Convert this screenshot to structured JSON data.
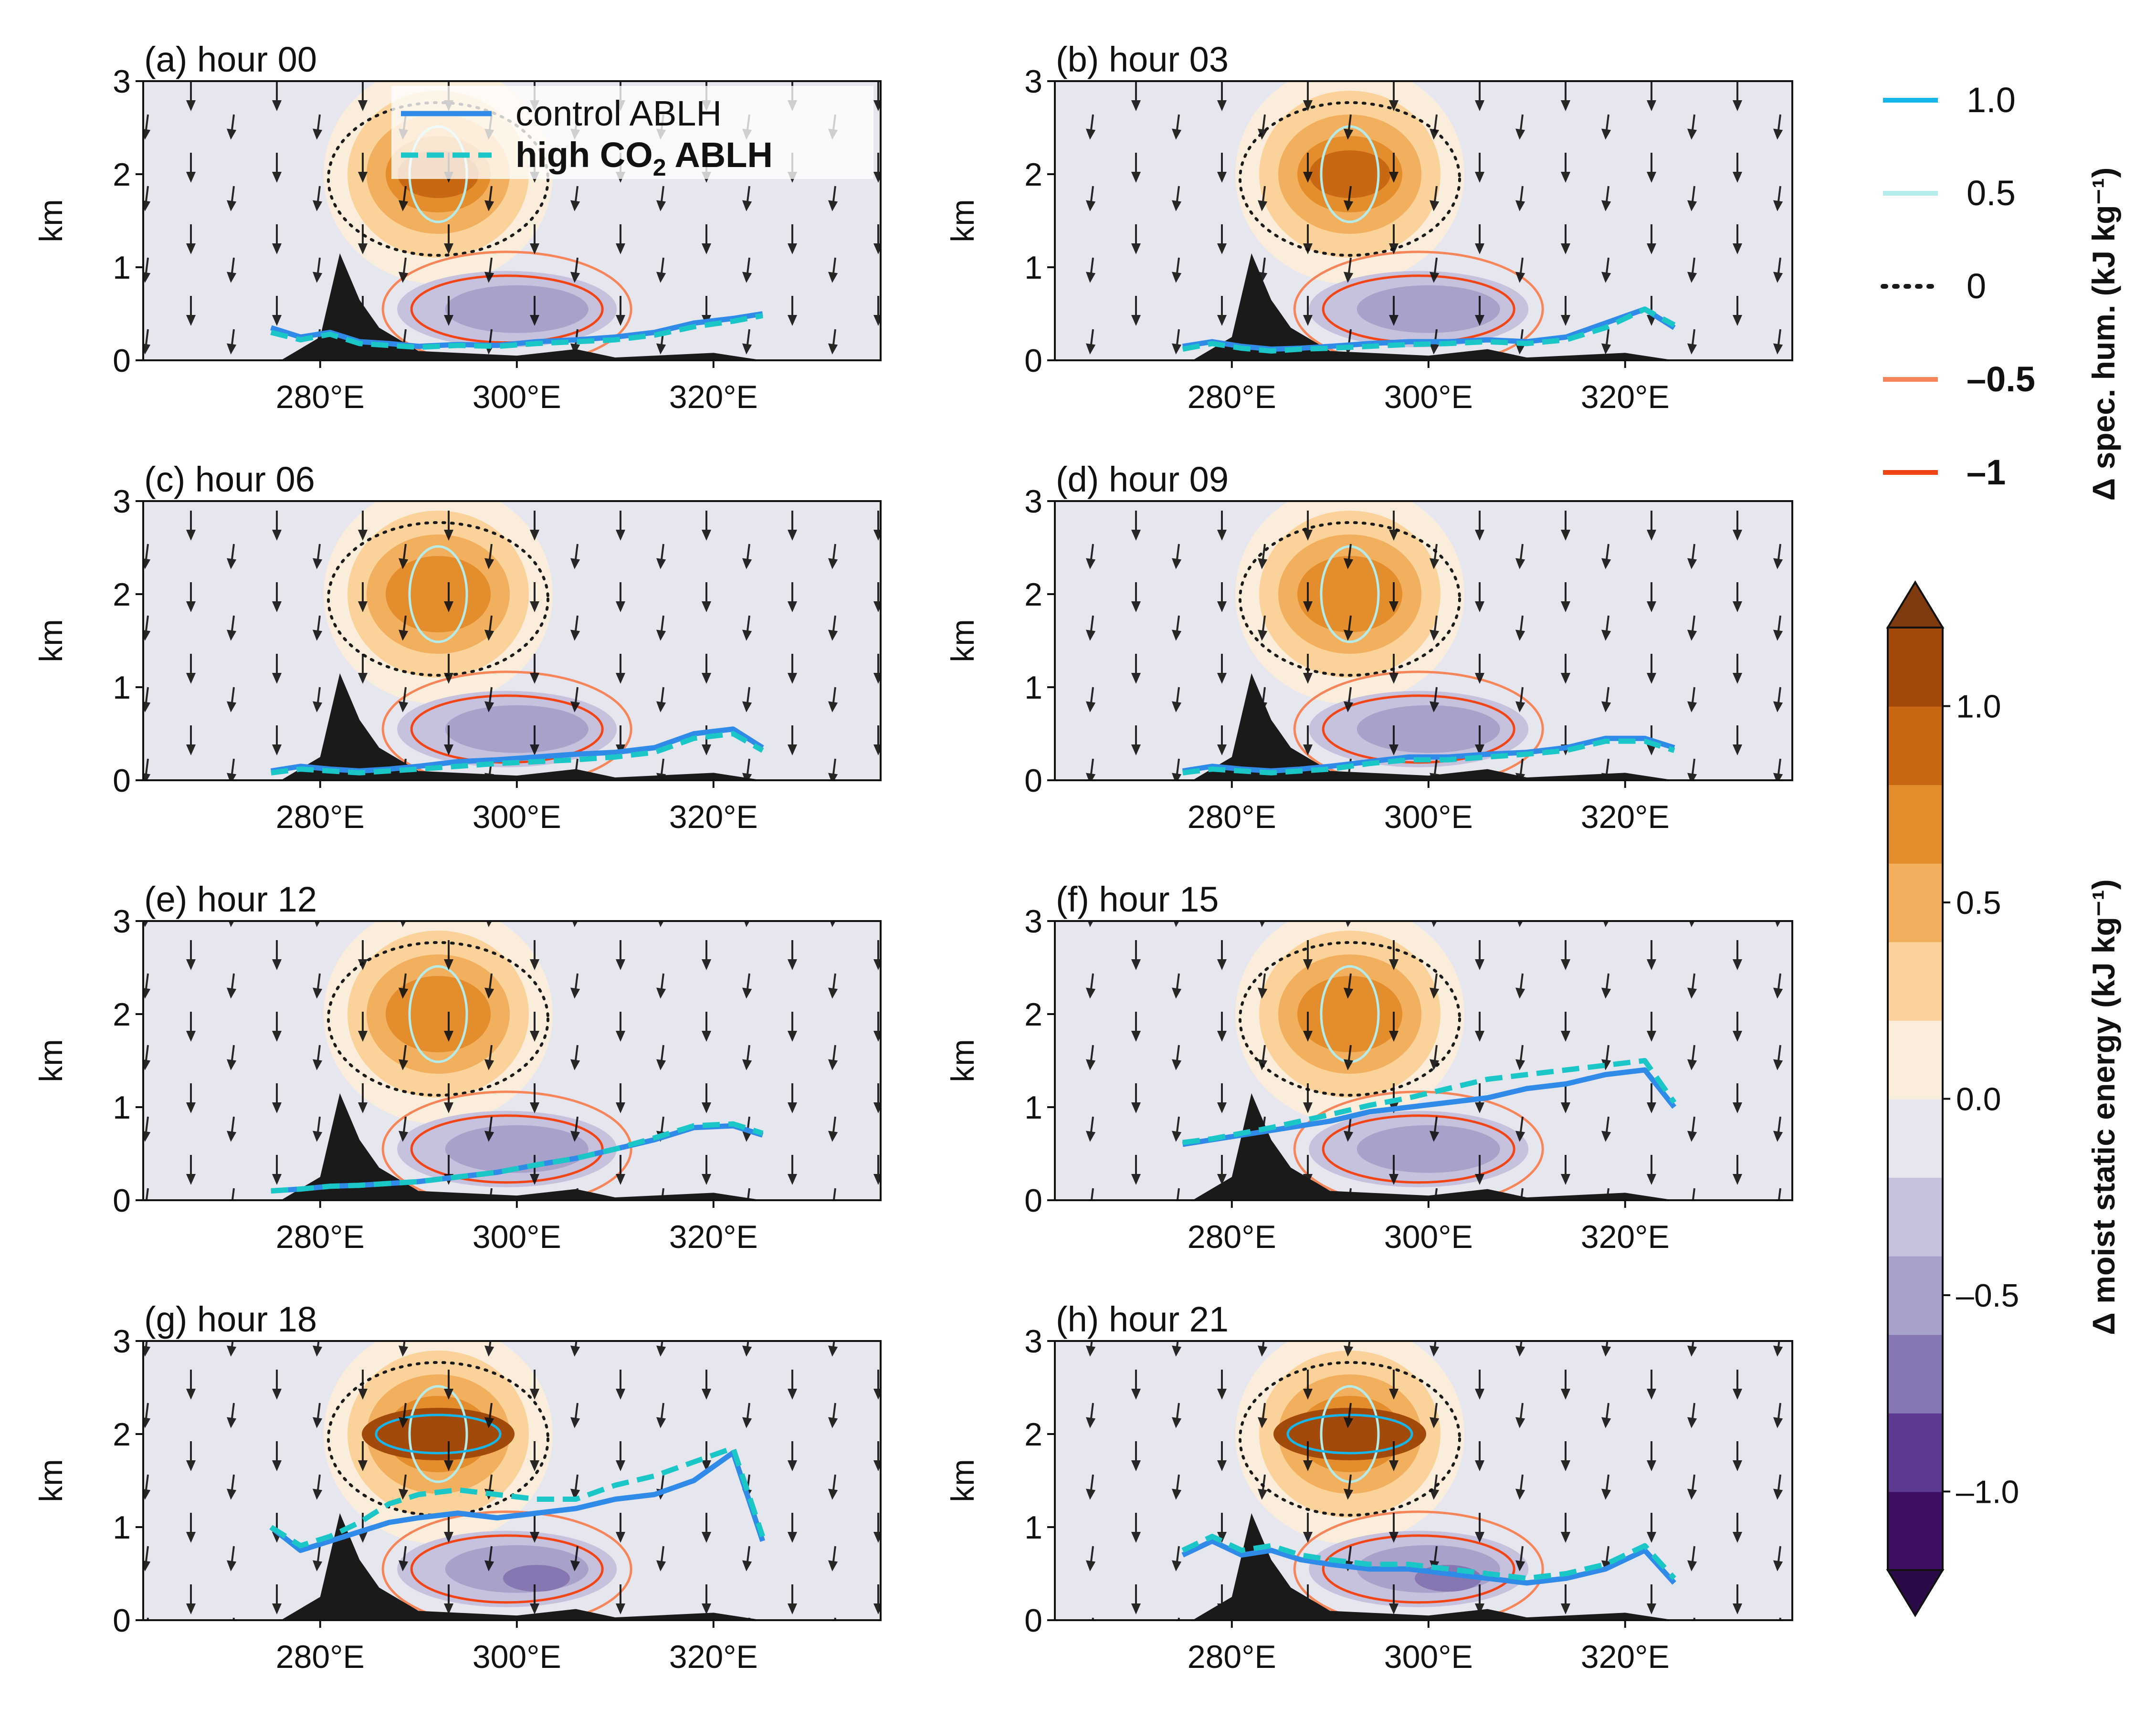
{
  "chart_data": {
    "type": "contour",
    "panels": [
      {
        "label": "(a) hour 00",
        "ablh_control": [
          0.35,
          0.25,
          0.3,
          0.2,
          0.18,
          0.15,
          0.17,
          0.16,
          0.2,
          0.22,
          0.25,
          0.3,
          0.4,
          0.45,
          0.5
        ],
        "ablh_high": [
          0.3,
          0.22,
          0.28,
          0.18,
          0.16,
          0.14,
          0.16,
          0.15,
          0.18,
          0.2,
          0.22,
          0.27,
          0.36,
          0.42,
          0.48
        ]
      },
      {
        "label": "(b) hour 03",
        "ablh_control": [
          0.15,
          0.2,
          0.15,
          0.12,
          0.13,
          0.15,
          0.18,
          0.2,
          0.2,
          0.22,
          0.2,
          0.25,
          0.4,
          0.55,
          0.35
        ],
        "ablh_high": [
          0.12,
          0.18,
          0.13,
          0.1,
          0.12,
          0.13,
          0.15,
          0.17,
          0.18,
          0.2,
          0.18,
          0.22,
          0.35,
          0.55,
          0.38
        ]
      },
      {
        "label": "(c) hour 06",
        "ablh_control": [
          0.1,
          0.15,
          0.12,
          0.1,
          0.12,
          0.15,
          0.2,
          0.22,
          0.25,
          0.28,
          0.3,
          0.35,
          0.5,
          0.55,
          0.35
        ],
        "ablh_high": [
          0.08,
          0.12,
          0.1,
          0.08,
          0.1,
          0.12,
          0.15,
          0.18,
          0.2,
          0.22,
          0.25,
          0.3,
          0.45,
          0.5,
          0.32
        ]
      },
      {
        "label": "(d) hour 09",
        "ablh_control": [
          0.1,
          0.15,
          0.12,
          0.1,
          0.12,
          0.15,
          0.2,
          0.25,
          0.25,
          0.28,
          0.3,
          0.35,
          0.45,
          0.45,
          0.35
        ],
        "ablh_high": [
          0.08,
          0.12,
          0.1,
          0.08,
          0.1,
          0.12,
          0.18,
          0.22,
          0.22,
          0.25,
          0.28,
          0.32,
          0.42,
          0.42,
          0.32
        ]
      },
      {
        "label": "(e) hour 12",
        "ablh_control": [
          0.1,
          0.12,
          0.15,
          0.16,
          0.18,
          0.2,
          0.25,
          0.3,
          0.38,
          0.45,
          0.55,
          0.65,
          0.78,
          0.8,
          0.7
        ],
        "ablh_high": [
          0.1,
          0.12,
          0.15,
          0.16,
          0.18,
          0.2,
          0.25,
          0.3,
          0.38,
          0.45,
          0.55,
          0.67,
          0.8,
          0.82,
          0.72
        ]
      },
      {
        "label": "(f) hour 15",
        "ablh_control": [
          0.6,
          0.65,
          0.7,
          0.75,
          0.8,
          0.85,
          0.95,
          1.0,
          1.05,
          1.1,
          1.2,
          1.25,
          1.35,
          1.4,
          1.0
        ],
        "ablh_high": [
          0.62,
          0.66,
          0.72,
          0.78,
          0.85,
          0.92,
          1.02,
          1.1,
          1.2,
          1.3,
          1.35,
          1.4,
          1.45,
          1.5,
          1.05
        ]
      },
      {
        "label": "(g) hour 18",
        "ablh_control": [
          1.0,
          0.75,
          0.85,
          0.95,
          1.05,
          1.1,
          1.15,
          1.1,
          1.15,
          1.2,
          1.3,
          1.35,
          1.5,
          1.8,
          0.85
        ],
        "ablh_high": [
          1.0,
          0.8,
          0.9,
          1.05,
          1.25,
          1.35,
          1.4,
          1.35,
          1.3,
          1.3,
          1.45,
          1.55,
          1.7,
          1.85,
          0.9
        ]
      },
      {
        "label": "(h) hour 21",
        "ablh_control": [
          0.7,
          0.85,
          0.7,
          0.75,
          0.65,
          0.6,
          0.55,
          0.55,
          0.5,
          0.45,
          0.4,
          0.45,
          0.55,
          0.75,
          0.4
        ],
        "ablh_high": [
          0.75,
          0.9,
          0.75,
          0.8,
          0.7,
          0.65,
          0.6,
          0.6,
          0.55,
          0.5,
          0.45,
          0.5,
          0.6,
          0.8,
          0.45
        ]
      }
    ],
    "ablh_x": [
      275,
      278,
      281,
      284,
      287,
      290,
      294,
      298,
      302,
      306,
      310,
      314,
      318,
      322,
      325
    ],
    "xlabel": "",
    "ylabel": "km",
    "xlim": [
      262,
      337
    ],
    "ylim": [
      0,
      3
    ],
    "xticks": [
      "280°E",
      "300°E",
      "320°E"
    ],
    "xtick_values": [
      280,
      300,
      320
    ],
    "yticks": [
      "0",
      "1",
      "2",
      "3"
    ],
    "legend_panel": {
      "control": "control ABLH",
      "high_prefix": "high CO",
      "high_sub": "2",
      "high_suffix": " ABLH"
    },
    "series_colors": {
      "control": "#2f8ae8",
      "high": "#1ac6c6"
    },
    "humidity_legend": [
      {
        "label": "1.0",
        "color": "#17b6ea",
        "style": "solid",
        "bold": false
      },
      {
        "label": "0.5",
        "color": "#b5ebe9",
        "style": "solid",
        "bold": false
      },
      {
        "label": "0",
        "color": "#1a1a1a",
        "style": "dotted",
        "bold": false
      },
      {
        "label": "–0.5",
        "color": "#f7855a",
        "style": "solid",
        "bold": true
      },
      {
        "label": "–1",
        "color": "#f24414",
        "style": "solid",
        "bold": true
      }
    ],
    "humidity_title": "Δ spec. hum. (kJ kg⁻¹)",
    "colorbar": {
      "title": "Δ moist static energy (kJ kg⁻¹)",
      "levels": [
        -1.2,
        -1.0,
        -0.8,
        -0.6,
        -0.4,
        -0.2,
        0.0,
        0.2,
        0.4,
        0.6,
        0.8,
        1.0,
        1.2
      ],
      "colors": [
        "#3d1063",
        "#5d3a92",
        "#8677b2",
        "#a8a1c9",
        "#c6c2dd",
        "#e6e6ef",
        "#fbeddb",
        "#fbd39a",
        "#f2b05e",
        "#e38d2c",
        "#c96813",
        "#a14a0c"
      ],
      "under_color": "#2a0a47",
      "over_color": "#7f3a10",
      "ticks": [
        "–1.0",
        "–0.5",
        "0.0",
        "0.5",
        "1.0"
      ],
      "tick_values": [
        -1.0,
        -0.5,
        0.0,
        0.5,
        1.0
      ]
    }
  }
}
